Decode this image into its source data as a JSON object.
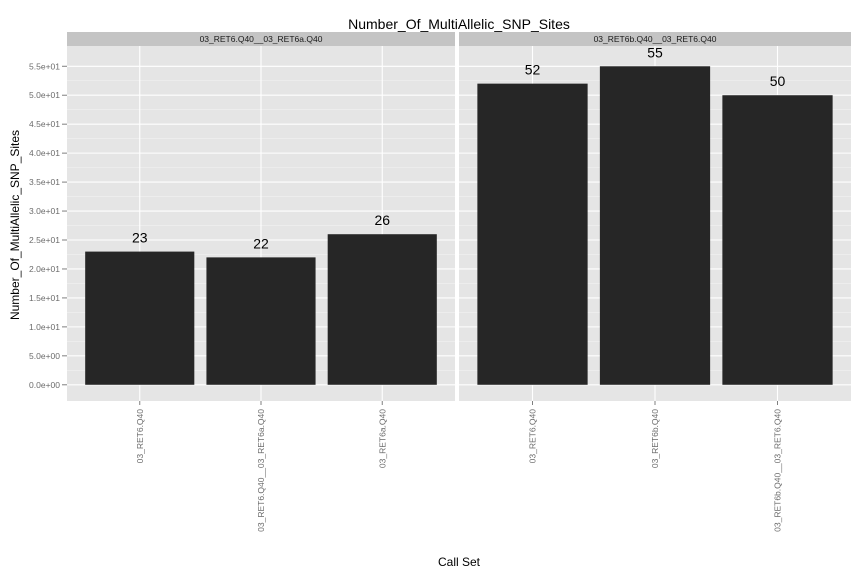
{
  "chart_data": {
    "type": "bar",
    "title": "Number_Of_MultiAllelic_SNP_Sites",
    "xlabel": "Call Set",
    "ylabel": "Number_Of_MultiAllelic_SNP_Sites",
    "ylim": [
      -2.8,
      58.5
    ],
    "yticks": [
      0,
      5,
      10,
      15,
      20,
      25,
      30,
      35,
      40,
      45,
      50,
      55
    ],
    "ytick_labels": [
      "0.0e+00",
      "5.0e+00",
      "1.0e+01",
      "1.5e+01",
      "2.0e+01",
      "2.5e+01",
      "3.0e+01",
      "3.5e+01",
      "4.0e+01",
      "4.5e+01",
      "5.0e+01",
      "5.5e+01"
    ],
    "grid": true,
    "bar_color": "#262626",
    "panel_background": "#e5e5e5",
    "strip_background": "#c4c4c4",
    "facets": [
      {
        "label": "03_RET6.Q40__03_RET6a.Q40",
        "categories": [
          "03_RET6.Q40",
          "03_RET6.Q40__03_RET6a.Q40",
          "03_RET6a.Q40"
        ],
        "values": [
          23,
          22,
          26
        ]
      },
      {
        "label": "03_RET6b.Q40__03_RET6.Q40",
        "categories": [
          "03_RET6.Q40",
          "03_RET6b.Q40",
          "03_RET6b.Q40__03_RET6.Q40"
        ],
        "values": [
          52,
          55,
          50
        ]
      }
    ]
  }
}
